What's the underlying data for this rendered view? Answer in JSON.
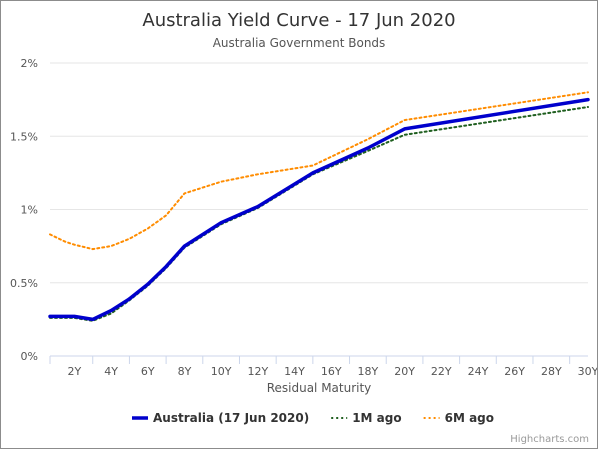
{
  "chart_data": {
    "type": "line",
    "title": "Australia Yield Curve - 17 Jun 2020",
    "subtitle": "Australia Government Bonds",
    "xlabel": "Residual Maturity",
    "ylabel": "",
    "ylim": [
      0,
      2
    ],
    "xlim": [
      0.67,
      30
    ],
    "grid": true,
    "legend_position": "bottom",
    "x_tick_labels": [
      "2Y",
      "4Y",
      "6Y",
      "8Y",
      "10Y",
      "12Y",
      "14Y",
      "16Y",
      "18Y",
      "20Y",
      "22Y",
      "24Y",
      "26Y",
      "28Y",
      "30Y"
    ],
    "y_tick_labels": [
      "0%",
      "0.5%",
      "1%",
      "1.5%",
      "2%"
    ],
    "y_tick_values": [
      0,
      0.5,
      1,
      1.5,
      2
    ],
    "series": [
      {
        "name": "Australia (17 Jun 2020)",
        "color": "#0000cc",
        "style": "solid",
        "x": [
          0.67,
          1.5,
          2,
          3,
          4,
          5,
          6,
          7,
          8,
          10,
          12,
          15,
          18,
          20,
          30
        ],
        "y": [
          0.27,
          0.27,
          0.27,
          0.25,
          0.31,
          0.39,
          0.49,
          0.61,
          0.75,
          0.91,
          1.02,
          1.25,
          1.42,
          1.55,
          1.75
        ]
      },
      {
        "name": "1M ago",
        "color": "#1f5f1f",
        "style": "dotted",
        "x": [
          0.67,
          1.5,
          2,
          3,
          4,
          5,
          6,
          7,
          8,
          10,
          12,
          15,
          18,
          20,
          30
        ],
        "y": [
          0.26,
          0.26,
          0.26,
          0.24,
          0.29,
          0.38,
          0.48,
          0.6,
          0.74,
          0.9,
          1.01,
          1.24,
          1.4,
          1.51,
          1.7
        ]
      },
      {
        "name": "6M ago",
        "color": "#ff8c00",
        "style": "dotted",
        "x": [
          0.67,
          1.5,
          2,
          3,
          4,
          5,
          6,
          7,
          8,
          10,
          12,
          15,
          18,
          20,
          30
        ],
        "y": [
          0.83,
          0.78,
          0.76,
          0.73,
          0.75,
          0.8,
          0.87,
          0.96,
          1.11,
          1.19,
          1.24,
          1.3,
          1.48,
          1.61,
          1.8
        ]
      }
    ]
  },
  "credits": "Highcharts.com"
}
